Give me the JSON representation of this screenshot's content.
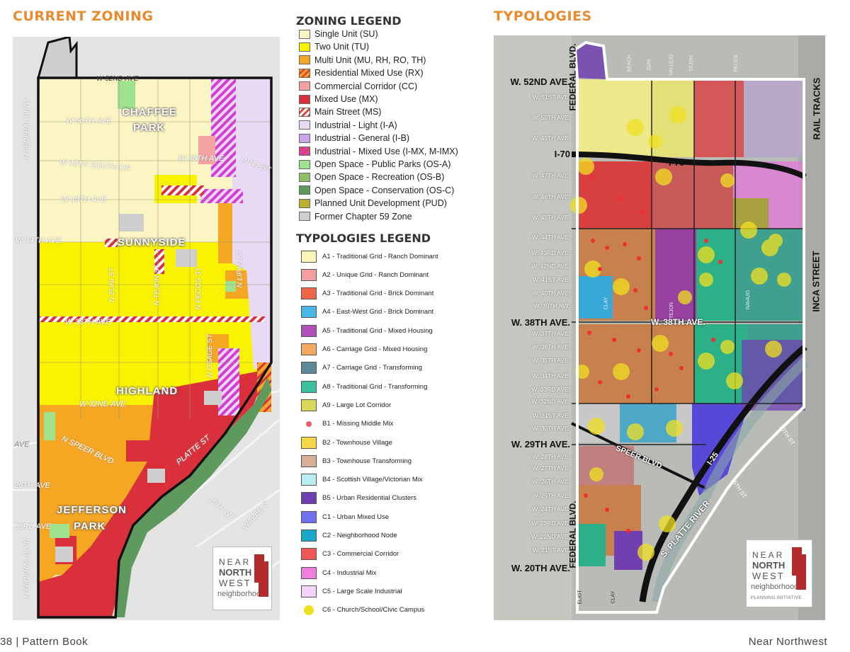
{
  "titles": {
    "current_zoning": "CURRENT ZONING",
    "typologies": "TYPOLOGIES",
    "zoning_legend": "ZONING LEGEND",
    "typologies_legend": "TYPOLOGIES LEGEND"
  },
  "zoning_legend": [
    {
      "label": "Single Unit  (SU)",
      "color": "#fbf5c4",
      "pattern": false
    },
    {
      "label": "Two Unit  (TU)",
      "color": "#f9f200",
      "pattern": false
    },
    {
      "label": "Multi Unit  (MU, RH, RO, TH)",
      "color": "#f5a623",
      "pattern": false
    },
    {
      "label": "Residential Mixed Use  (RX)",
      "color": "#f5a623",
      "pattern": true
    },
    {
      "label": "Commercial Corridor  (CC)",
      "color": "#f4a3a3",
      "pattern": false
    },
    {
      "label": "Mixed Use  (MX)",
      "color": "#d9303c",
      "pattern": false
    },
    {
      "label": "Main Street  (MS)",
      "color": "#ffffff",
      "pattern": true
    },
    {
      "label": "Industrial - Light  (I-A)",
      "color": "#e8d9f5",
      "pattern": false
    },
    {
      "label": "Industrial - General  (I-B)",
      "color": "#c9a6ea",
      "pattern": false
    },
    {
      "label": "Industrial - Mixed Use  (I-MX, M-IMX)",
      "color": "#d63bd6",
      "pattern": true
    },
    {
      "label": "Open Space - Public Parks  (OS-A)",
      "color": "#9fe38f",
      "pattern": false
    },
    {
      "label": "Open Space - Recreation  (OS-B)",
      "color": "#8fbf6a",
      "pattern": false
    },
    {
      "label": "Open Space - Conservation  (OS-C)",
      "color": "#5e9a5e",
      "pattern": false
    },
    {
      "label": "Planned Unit Development  (PUD)",
      "color": "#b9b02c",
      "pattern": false
    },
    {
      "label": "Former Chapter 59 Zone",
      "color": "#cfcfcf",
      "pattern": false
    }
  ],
  "typologies_legend": [
    {
      "label": "A1 - Traditional Grid - Ranch Dominant",
      "color": "#fbf5b8",
      "dot": false
    },
    {
      "label": "A2 - Unique Grid - Ranch Dominant",
      "color": "#f4a0a0",
      "dot": false
    },
    {
      "label": "A3 - Traditional Grid - Brick Dominant",
      "color": "#ee6648",
      "dot": false
    },
    {
      "label": "A4 - East-West Grid - Brick Dominant",
      "color": "#48b8e8",
      "dot": false
    },
    {
      "label": "A5 - Traditional Grid - Mixed Housing",
      "color": "#b050b8",
      "dot": false
    },
    {
      "label": "A6 - Carriage Grid - Mixed Housing",
      "color": "#f5a860",
      "dot": false
    },
    {
      "label": "A7 - Carriage Grid - Transforming",
      "color": "#5e8898",
      "dot": false
    },
    {
      "label": "A8 - Traditional Grid - Transforming",
      "color": "#3cc0a0",
      "dot": false
    },
    {
      "label": "A9 - Large Lot Corridor",
      "color": "#d8d858",
      "dot": false
    },
    {
      "label": "B1 - Missing Middle Mix",
      "color": "#ee6060",
      "dot": true
    },
    {
      "label": "B2 - Townhouse Village",
      "color": "#f8d848",
      "dot": false
    },
    {
      "label": "B3 - Townhouse Transforming",
      "color": "#d8b098",
      "dot": false
    },
    {
      "label": "B4 - Scottish Village/Victorian Mix",
      "color": "#b8eef0",
      "dot": false
    },
    {
      "label": "B5 - Urban Residential Clusters",
      "color": "#7040b0",
      "dot": false
    },
    {
      "label": "C1 - Urban Mixed Use",
      "color": "#7070f0",
      "dot": false
    },
    {
      "label": "C2 - Neighborhood Node",
      "color": "#18a8c8",
      "dot": false
    },
    {
      "label": "C3 - Commercial Corridor",
      "color": "#f05858",
      "dot": false
    },
    {
      "label": "C4 - Industrial Mix",
      "color": "#f080e0",
      "dot": false
    },
    {
      "label": "C5 - Large Scale Industrial",
      "color": "#f4d4f8",
      "dot": false
    },
    {
      "label": "C6 - Church/School/Civic Campus",
      "color": "#f0e020",
      "dot": true
    }
  ],
  "zoning_map": {
    "neighborhoods": [
      "CHAFFEE",
      "PARK",
      "SUNNYSIDE",
      "HIGHLAND",
      "JEFFERSON",
      "PARK"
    ],
    "streets": {
      "w52nd": "W 52ND AVE",
      "w50th": "W 50TH AVE",
      "w48th_south": "W 48TH SOUTH DR",
      "w48th": "W 48TH AVE",
      "interst": "INTERST",
      "w46th": "W 46TH AVE",
      "w44th": "W 44TH AVE",
      "w38th": "W 38TH AVE",
      "w32nd": "W 32ND AVE",
      "nspeer": "N SPEER BLVD",
      "platte": "PLATTE ST",
      "ave": "AVE",
      "w26th": "26TH AVE",
      "w23rd": "23RD AVE",
      "st15th": "15TH ST",
      "wazee": "WAZEE S",
      "nfederal_top": "N FEDERAL BLVD",
      "nfederal_bot": "N FEDERAL BLVD",
      "nzuni": "N ZUNI ST",
      "ntejon": "N TEJON ST",
      "npecos": "N PECOS ST",
      "nosage": "N OSAGE ST",
      "nlipan": "N LIPAN ST"
    }
  },
  "typology_map": {
    "avenues": [
      "W. 52ND AVE.",
      "W. 51ST AVE.",
      "W. 50TH AVE.",
      "W. 49TH AVE.",
      "I-70",
      "W. 47TH AVE.",
      "W. 46TH AVE.",
      "W. 45TH AVE.",
      "W. 44TH AVE.",
      "W. 43RD AVE.",
      "W. 42ND AVE.",
      "W. 41ST AVE.",
      "W. 40TH AVE.",
      "W. 39TH AVE",
      "W. 38TH AVE.",
      "W. 37TH AVE.",
      "W. 36TH AVE.",
      "W. 35TH AVE.",
      "W. 34TH AVE.",
      "W. 33RD AVE.",
      "W. 32ND AVE.",
      "W. 31ST AVE.",
      "W. 30TH AVE.",
      "W. 29TH AVE.",
      "W. 28TH AVE.",
      "W. 27TH AVE.",
      "W. 26TH AVE.",
      "W. 25TH AVE.",
      "W. 24TH AVE.",
      "W. 23RD AVE.",
      "W. 22ND AVE.",
      "W. 21ST AVE.",
      "W. 20TH AVE."
    ],
    "labels": {
      "federal_top": "FEDERAL BLVD.",
      "federal_bot": "FEDERAL BLVD.",
      "rail": "RAIL TRACKS",
      "inca": "INCA STREET",
      "i70_road": "I-70",
      "w38th_road": "W. 38TH AVE.",
      "speer": "SPEER BLVD",
      "i25": "I-25",
      "platte": "S. PLATTE RIVER",
      "st20th": "20TH ST",
      "st15th": "15TH ST",
      "beach": "BEACH",
      "zuni": "ZUNI",
      "vallejo": "VALLEJO",
      "tejon": "TEJON",
      "pecos": "PECOS",
      "eliot": "ELIOT",
      "clay": "CLAY",
      "tejon_mid": "TEJON",
      "navajo": "NAVAJO",
      "clay_mid": "CLAY"
    }
  },
  "logo": {
    "line1": "NEAR",
    "line2": "NORTH",
    "line3": "WEST",
    "line4": "neighborhood",
    "line5": "PLANNING INITIATIVE"
  },
  "footer": {
    "left": "38 | Pattern Book",
    "right": "Near Northwest"
  }
}
